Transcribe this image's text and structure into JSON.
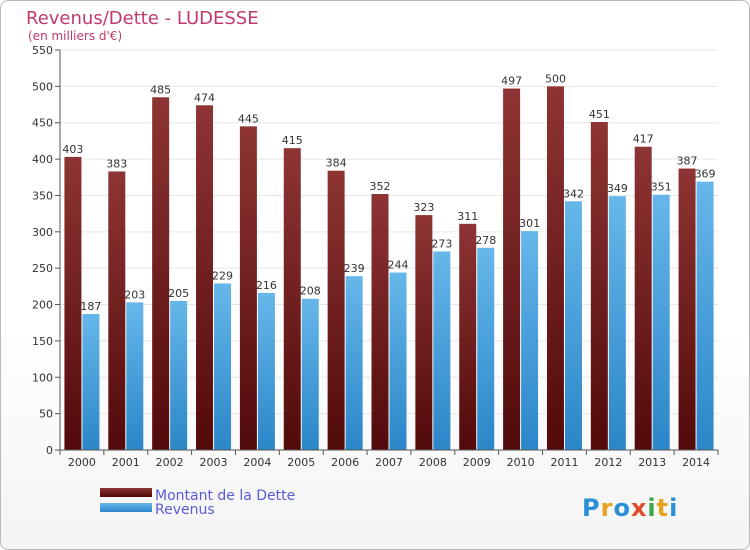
{
  "chart_data": {
    "type": "bar",
    "title": "Revenus/Dette - LUDESSE",
    "subtitle": "(en milliers d'€)",
    "categories": [
      "2000",
      "2001",
      "2002",
      "2003",
      "2004",
      "2005",
      "2006",
      "2007",
      "2008",
      "2009",
      "2010",
      "2011",
      "2012",
      "2013",
      "2014"
    ],
    "series": [
      {
        "name": "Montant de la Dette",
        "values": [
          403,
          383,
          485,
          474,
          445,
          415,
          384,
          352,
          323,
          311,
          497,
          500,
          451,
          417,
          387
        ],
        "color": "#7a1a1a"
      },
      {
        "name": "Revenus",
        "values": [
          187,
          203,
          205,
          229,
          216,
          208,
          239,
          244,
          273,
          278,
          301,
          342,
          349,
          351,
          369
        ],
        "color": "#4fa6e0"
      }
    ],
    "ylim": [
      0,
      550
    ],
    "yticks": [
      0,
      50,
      100,
      150,
      200,
      250,
      300,
      350,
      400,
      450,
      500,
      550
    ],
    "grid": true,
    "legend_position": "bottom-left"
  },
  "colors": {
    "title": "#c0396b",
    "axis_text": "#333333",
    "grid": "#e6e6e6"
  },
  "logo": {
    "text": "Proxiti"
  }
}
